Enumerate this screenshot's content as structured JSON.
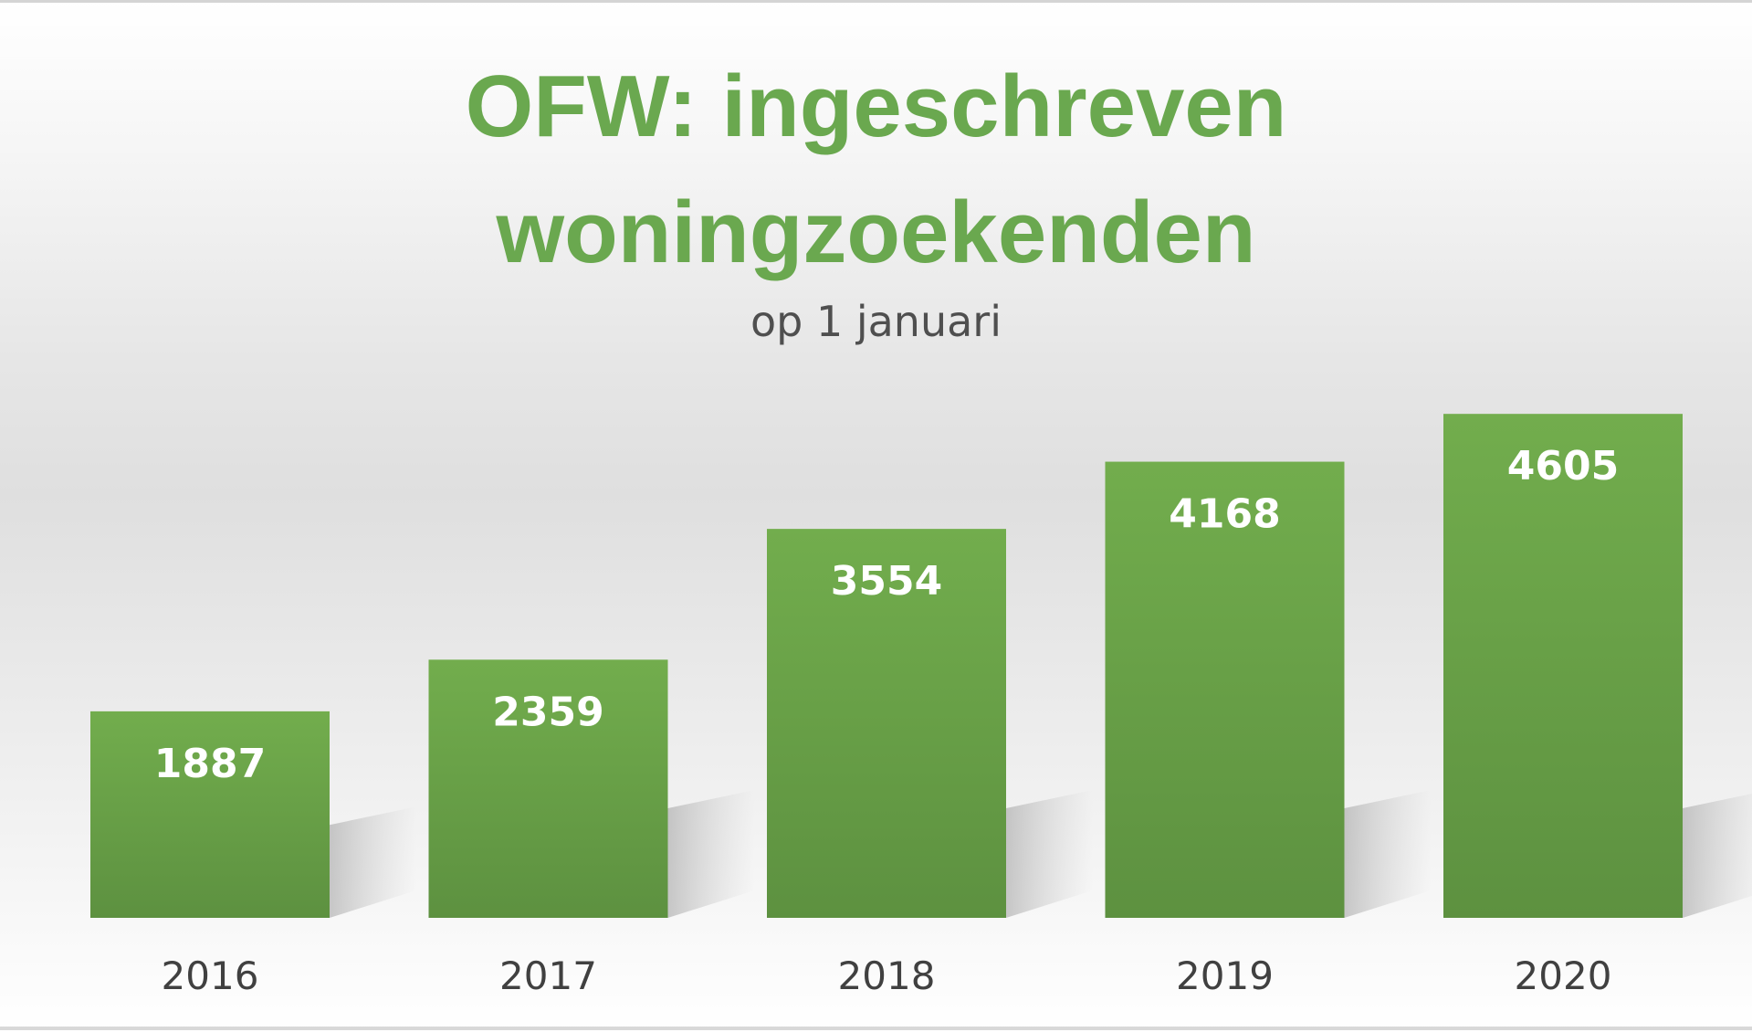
{
  "chart_data": {
    "type": "bar",
    "title_lines": [
      "OFW: ingeschreven",
      "woningzoekenden"
    ],
    "subtitle": "op 1 januari",
    "categories": [
      "2016",
      "2017",
      "2018",
      "2019",
      "2020"
    ],
    "values": [
      1887,
      2359,
      3554,
      4168,
      4605
    ],
    "data_labels": [
      "1887",
      "2359",
      "3554",
      "4168",
      "4605"
    ],
    "xlabel": "",
    "ylabel": "",
    "ylim": [
      0,
      5000
    ],
    "grid": false,
    "legend": "none"
  },
  "colors": {
    "bar_top": "#72ad4d",
    "bar_bottom": "#5d9140",
    "title": "#6aa84f",
    "data_label": "#ffffff",
    "tick_label": "#404040"
  }
}
